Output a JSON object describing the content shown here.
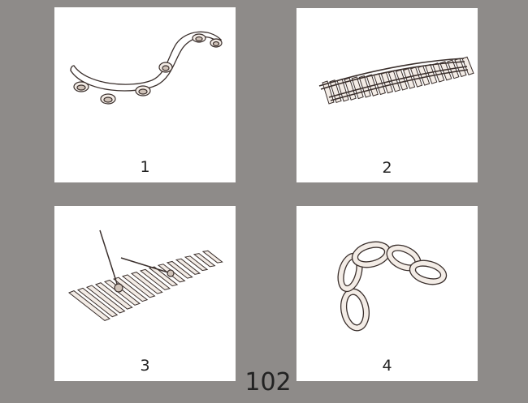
{
  "panels": [
    {
      "number": "1",
      "icon": "tambourine-icon"
    },
    {
      "number": "2",
      "icon": "railway-track-icon"
    },
    {
      "number": "3",
      "icon": "xylophone-icon"
    },
    {
      "number": "4",
      "icon": "chain-icon"
    }
  ],
  "page_number": "102"
}
